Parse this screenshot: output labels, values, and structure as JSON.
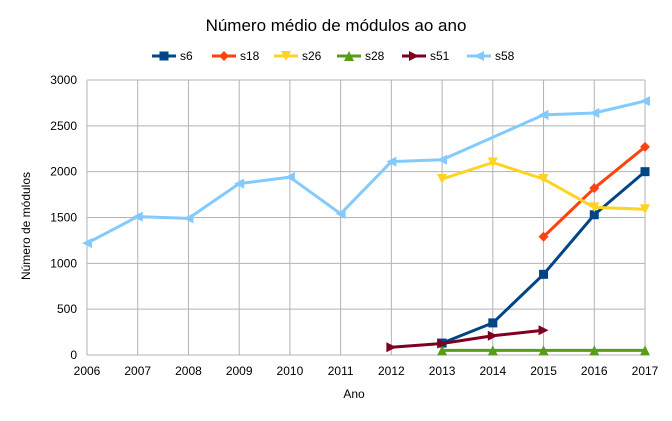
{
  "chart_data": {
    "type": "line",
    "title": "Número médio de módulos ao ano",
    "xlabel": "Ano",
    "ylabel": "Número de módulos",
    "x": [
      2006,
      2007,
      2008,
      2009,
      2010,
      2011,
      2012,
      2013,
      2014,
      2015,
      2016,
      2017
    ],
    "xlim": [
      2006,
      2017
    ],
    "ylim": [
      0,
      3000
    ],
    "yticks": [
      0,
      500,
      1000,
      1500,
      2000,
      2500,
      3000
    ],
    "grid": true,
    "legend_position": "top",
    "series": [
      {
        "name": "s6",
        "color": "#004586",
        "marker": "square",
        "points": [
          [
            2013,
            130
          ],
          [
            2014,
            350
          ],
          [
            2015,
            880
          ],
          [
            2016,
            1530
          ],
          [
            2017,
            2000
          ]
        ]
      },
      {
        "name": "s18",
        "color": "#ff420e",
        "marker": "diamond",
        "points": [
          [
            2015,
            1290
          ],
          [
            2016,
            1820
          ],
          [
            2017,
            2270
          ]
        ]
      },
      {
        "name": "s26",
        "color": "#ffd320",
        "marker": "triangle-down",
        "points": [
          [
            2013,
            1920
          ],
          [
            2014,
            2100
          ],
          [
            2015,
            1920
          ],
          [
            2016,
            1610
          ],
          [
            2017,
            1590
          ]
        ]
      },
      {
        "name": "s28",
        "color": "#579d1c",
        "marker": "triangle-up",
        "points": [
          [
            2013,
            50
          ],
          [
            2014,
            50
          ],
          [
            2015,
            50
          ],
          [
            2016,
            50
          ],
          [
            2017,
            50
          ]
        ]
      },
      {
        "name": "s51",
        "color": "#7e0021",
        "marker": "triangle-right",
        "points": [
          [
            2012,
            85
          ],
          [
            2013,
            125
          ],
          [
            2014,
            210
          ],
          [
            2015,
            270
          ]
        ]
      },
      {
        "name": "s58",
        "color": "#83caff",
        "marker": "triangle-left",
        "points": [
          [
            2006,
            1220
          ],
          [
            2007,
            1510
          ],
          [
            2008,
            1490
          ],
          [
            2009,
            1870
          ],
          [
            2010,
            1940
          ],
          [
            2011,
            1540
          ],
          [
            2012,
            2110
          ],
          [
            2013,
            2130
          ],
          [
            2015,
            2620
          ],
          [
            2016,
            2640
          ],
          [
            2017,
            2770
          ]
        ]
      }
    ]
  }
}
